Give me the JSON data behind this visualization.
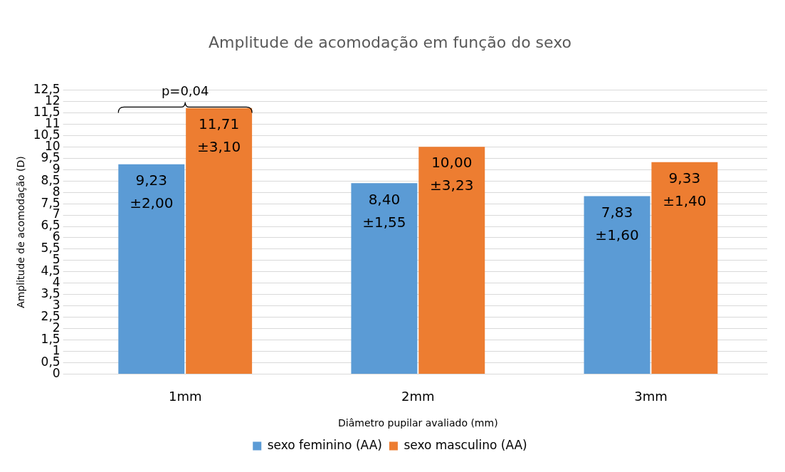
{
  "chart_data": {
    "type": "bar",
    "title": "Amplitude de acomodação em função do sexo",
    "xlabel": "Diâmetro pupilar avaliado (mm)",
    "ylabel": "Amplitude de acomodação (D)",
    "annotations": [
      "p=0,04"
    ],
    "categories": [
      "1mm",
      "2mm",
      "3mm"
    ],
    "series": [
      {
        "name": "sexo feminino (AA)",
        "color": "#5b9bd5",
        "values": [
          9.23,
          8.4,
          7.83
        ],
        "value_labels": [
          "9,23\n±2,00",
          "8,40\n±1,55",
          "7,83\n±1,60"
        ]
      },
      {
        "name": "sexo masculino (AA)",
        "color": "#ed7d31",
        "values": [
          11.71,
          10.0,
          9.33
        ],
        "value_labels": [
          "11,71\n±3,10",
          "10,00\n±3,23",
          "9,33\n±1,40"
        ]
      }
    ],
    "ylim": [
      0,
      12.5
    ],
    "yticks": [
      0,
      {
        "value": 0.5,
        "label": "0,5"
      },
      1,
      {
        "value": 1.5,
        "label": "1,5"
      },
      2,
      {
        "value": 2.5,
        "label": "2,5"
      },
      3,
      {
        "value": 3.5,
        "label": "3,5"
      },
      4,
      {
        "value": 4.5,
        "label": "4,5"
      },
      5,
      {
        "value": 5.5,
        "label": "5,5"
      },
      6,
      {
        "value": 6.5,
        "label": "6,5"
      },
      7,
      {
        "value": 7.5,
        "label": "7,5"
      },
      8,
      {
        "value": 8.5,
        "label": "8,5"
      },
      9,
      {
        "value": 9.5,
        "label": "9,5"
      },
      10,
      {
        "value": 10.5,
        "label": "10,5"
      },
      11,
      {
        "value": 11.5,
        "label": "11,5"
      },
      12,
      {
        "value": 12.5,
        "label": "12,5"
      }
    ],
    "grid": "y",
    "legend": "bottom"
  }
}
